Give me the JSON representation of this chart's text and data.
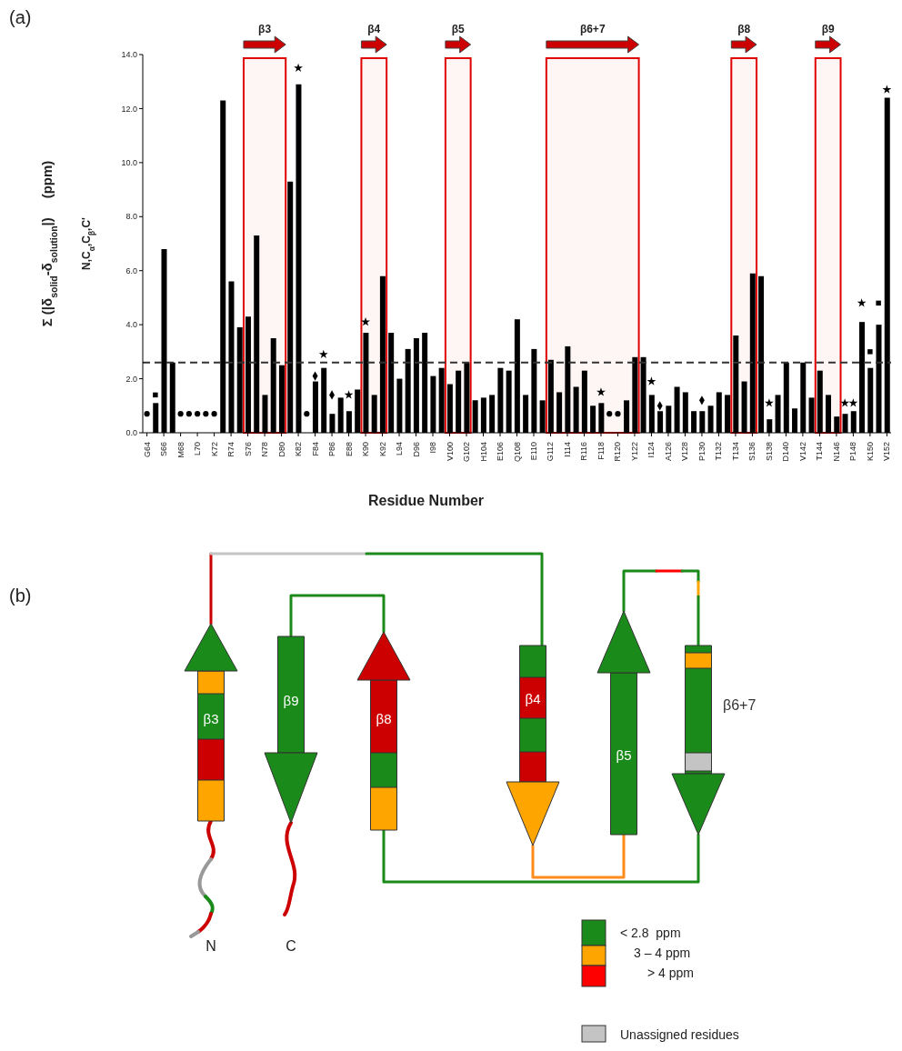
{
  "chart_data": [
    {
      "type": "bar",
      "annotations": [
        "(a)"
      ],
      "xlabel": "Residue Number",
      "ylabel": "Σ (|δ$_{solid}$-δ$_{solution}$|)     (ppm)\nN,C$_{α}$,C$_{β}$,C'",
      "categories": [
        "G64",
        null,
        "S66",
        null,
        "M68",
        null,
        "L70",
        null,
        "K72",
        null,
        "R74",
        null,
        "S76",
        null,
        "N78",
        null,
        "D80",
        null,
        "K82",
        null,
        "F84",
        null,
        "P86",
        null,
        "E88",
        null,
        "K90",
        null,
        "K92",
        null,
        "L94",
        null,
        "D96",
        null,
        "I98",
        null,
        "V100",
        null,
        "G102",
        null,
        "H104",
        null,
        "E106",
        null,
        "Q108",
        null,
        "E110",
        null,
        "G112",
        null,
        "I114",
        null,
        "R116",
        null,
        "F118",
        null,
        "R120",
        null,
        "Y122",
        null,
        "I124",
        null,
        "A126",
        null,
        "V128",
        null,
        "P130",
        null,
        "T132",
        null,
        "T134",
        null,
        "S136",
        null,
        "S138",
        null,
        "D140",
        null,
        "V142",
        null,
        "T144",
        null,
        "N146",
        null,
        "P148",
        null,
        "K150",
        null,
        "V152"
      ],
      "ylim": [
        0,
        14
      ],
      "yticks": [
        {
          "value": 0,
          "label": "0.0"
        },
        {
          "value": 2,
          "label": "2.0"
        },
        {
          "value": 4,
          "label": "4.0"
        },
        {
          "value": 6,
          "label": "6.0"
        },
        {
          "value": 8,
          "label": "8.0"
        },
        {
          "value": 10,
          "label": "10.0"
        },
        {
          "value": 12,
          "label": "12.0"
        },
        {
          "value": 14,
          "label": "14.0"
        }
      ],
      "series": [
        {
          "type": "bar",
          "color": "#000000",
          "values": [
            null,
            1.1,
            6.8,
            2.6,
            null,
            null,
            null,
            null,
            null,
            12.3,
            5.6,
            3.9,
            4.3,
            7.3,
            1.4,
            3.5,
            2.5,
            9.3,
            12.9,
            null,
            1.9,
            2.4,
            0.7,
            1.3,
            0.8,
            1.6,
            3.7,
            1.4,
            5.8,
            3.7,
            2.0,
            3.1,
            3.5,
            3.7,
            2.1,
            2.4,
            1.8,
            2.3,
            2.6,
            1.2,
            1.3,
            1.4,
            2.4,
            2.3,
            4.2,
            1.4,
            3.1,
            1.2,
            2.7,
            1.5,
            3.2,
            1.7,
            2.3,
            1.0,
            1.1,
            null,
            null,
            1.2,
            2.8,
            2.8,
            1.4,
            0.8,
            1.0,
            1.7,
            1.5,
            0.8,
            0.8,
            1.0,
            1.5,
            1.4,
            3.6,
            1.9,
            5.9,
            5.8,
            0.5,
            1.4,
            2.6,
            0.9,
            2.6,
            1.3,
            2.3,
            1.4,
            0.6,
            0.7,
            0.8,
            4.1,
            2.4,
            4.0,
            12.4
          ]
        },
        {
          "type": "scatter",
          "marker": "circle",
          "color": "#000000",
          "values": [
            0.7,
            null,
            null,
            null,
            0.7,
            0.7,
            0.7,
            0.7,
            0.7,
            null,
            null,
            null,
            null,
            null,
            null,
            null,
            null,
            null,
            null,
            0.7,
            null,
            null,
            null,
            null,
            null,
            null,
            null,
            null,
            null,
            null,
            null,
            null,
            null,
            null,
            null,
            null,
            null,
            null,
            null,
            null,
            null,
            null,
            null,
            null,
            null,
            null,
            null,
            null,
            null,
            null,
            null,
            null,
            null,
            null,
            null,
            0.7,
            0.7,
            null,
            null,
            null,
            null,
            null,
            null,
            null,
            null,
            null,
            null,
            null,
            null,
            null,
            null,
            null,
            null,
            null,
            null,
            null,
            null,
            null,
            null,
            null,
            null,
            null,
            null,
            null,
            null,
            null,
            null,
            null,
            null
          ]
        },
        {
          "type": "scatter",
          "marker": "square",
          "color": "#000000",
          "values": [
            null,
            1.4,
            null,
            null,
            null,
            null,
            null,
            null,
            null,
            null,
            null,
            null,
            null,
            null,
            null,
            null,
            null,
            null,
            null,
            null,
            null,
            null,
            null,
            null,
            null,
            null,
            null,
            null,
            null,
            null,
            null,
            null,
            null,
            null,
            null,
            null,
            null,
            null,
            null,
            null,
            null,
            null,
            null,
            null,
            null,
            null,
            null,
            null,
            null,
            null,
            null,
            null,
            null,
            null,
            null,
            null,
            null,
            null,
            null,
            null,
            null,
            null,
            null,
            null,
            null,
            null,
            null,
            null,
            null,
            null,
            null,
            null,
            null,
            null,
            null,
            null,
            null,
            null,
            null,
            null,
            null,
            null,
            null,
            null,
            null,
            null,
            3.0,
            4.8,
            null
          ]
        },
        {
          "type": "scatter",
          "marker": "star",
          "color": "#000000",
          "values": [
            null,
            null,
            null,
            null,
            null,
            null,
            null,
            null,
            null,
            null,
            null,
            null,
            null,
            null,
            null,
            null,
            null,
            null,
            13.5,
            null,
            null,
            2.9,
            null,
            null,
            1.4,
            null,
            4.1,
            null,
            null,
            null,
            null,
            null,
            null,
            null,
            null,
            null,
            null,
            null,
            null,
            null,
            null,
            null,
            null,
            null,
            null,
            null,
            null,
            null,
            null,
            null,
            null,
            null,
            null,
            null,
            1.5,
            null,
            null,
            null,
            null,
            null,
            1.9,
            null,
            null,
            null,
            null,
            null,
            null,
            null,
            null,
            null,
            null,
            null,
            null,
            null,
            1.1,
            null,
            null,
            null,
            null,
            null,
            null,
            null,
            null,
            1.1,
            1.1,
            4.8,
            null,
            null,
            12.7
          ]
        },
        {
          "type": "scatter",
          "marker": "diamond",
          "color": "#000000",
          "values": [
            null,
            null,
            null,
            null,
            null,
            null,
            null,
            null,
            null,
            null,
            null,
            null,
            null,
            null,
            null,
            null,
            null,
            null,
            null,
            null,
            2.1,
            null,
            1.4,
            null,
            null,
            null,
            null,
            null,
            null,
            null,
            null,
            null,
            null,
            null,
            null,
            null,
            null,
            null,
            null,
            null,
            null,
            null,
            null,
            null,
            null,
            null,
            null,
            null,
            null,
            null,
            null,
            null,
            null,
            null,
            null,
            null,
            null,
            null,
            null,
            null,
            null,
            1.0,
            null,
            null,
            null,
            null,
            1.2,
            null,
            null,
            null,
            null,
            null,
            null,
            null,
            null,
            null,
            null,
            null,
            null,
            null,
            null,
            null,
            null,
            null,
            null,
            null,
            null,
            null,
            null
          ]
        }
      ],
      "ref_lines": [
        {
          "axis": "y",
          "value": 2.6,
          "line_style": "dashed",
          "color": "#333333"
        }
      ],
      "bands": [
        {
          "axis": "x",
          "from": "S76",
          "to": "D80",
          "label": "β3",
          "color": "#e00000"
        },
        {
          "axis": "x",
          "from": "K90",
          "to": "K92",
          "label": "β4",
          "color": "#e00000"
        },
        {
          "axis": "x",
          "from": "V100",
          "to": "G102",
          "label": "β5",
          "color": "#e00000"
        },
        {
          "axis": "x",
          "from": "G112",
          "to": "Y122",
          "label": "β6+7",
          "color": "#e00000"
        },
        {
          "axis": "x",
          "from": "T134",
          "to": "S136",
          "label": "β8",
          "color": "#e00000"
        },
        {
          "axis": "x",
          "from": "T144",
          "to": "N146",
          "label": "β9",
          "color": "#e00000"
        }
      ]
    },
    {
      "type": "other",
      "annotations": [
        "(b)",
        "β3",
        "β9",
        "β8",
        "β4",
        "β5",
        "β6+7",
        "N",
        "C",
        "< 2.8  ppm",
        "3 – 4 ppm",
        "> 4 ppm",
        "Unassigned residues"
      ]
    }
  ]
}
